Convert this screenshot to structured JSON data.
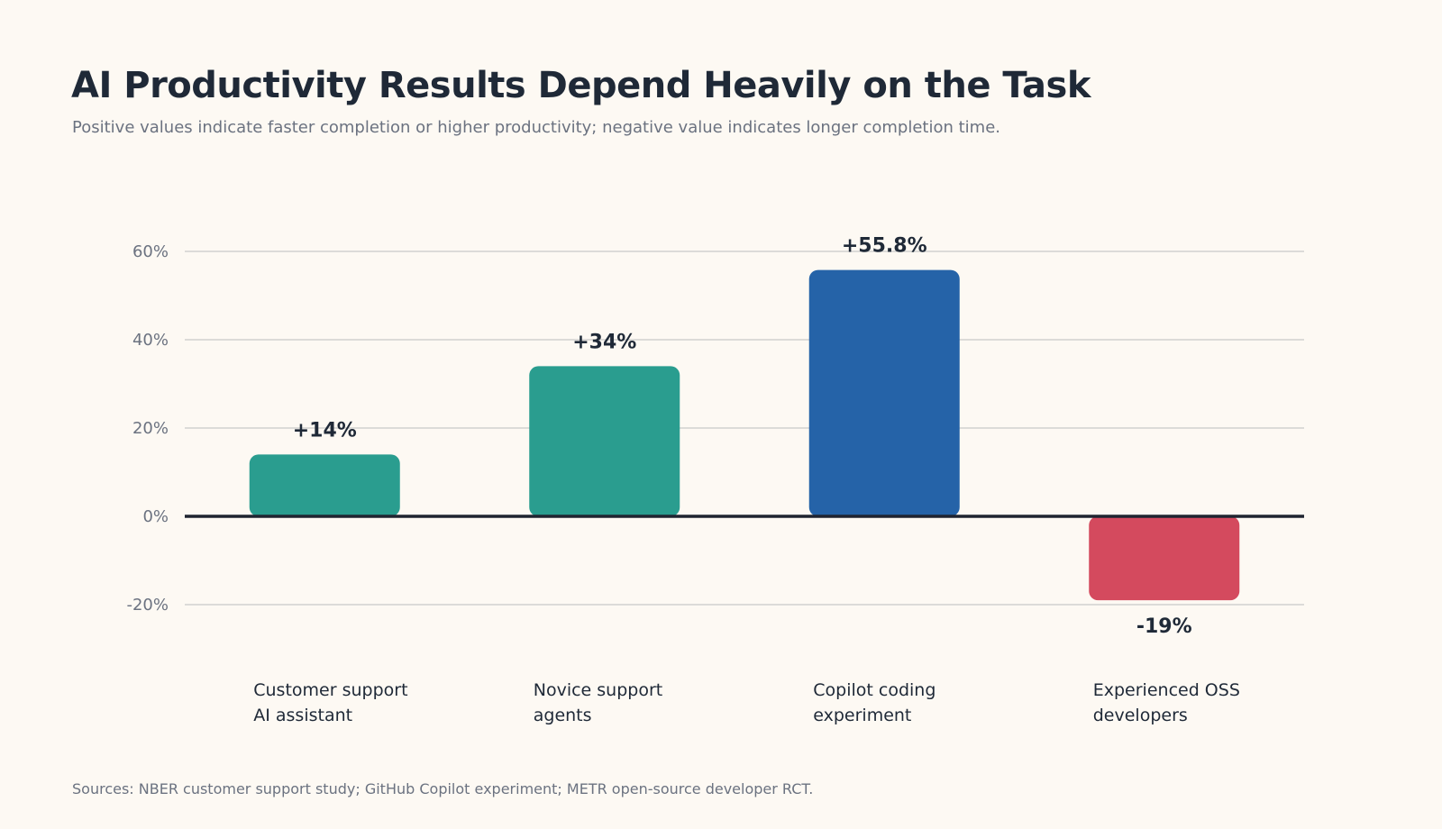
{
  "header": {
    "title": "AI Productivity Results Depend Heavily on the Task",
    "subtitle": "Positive values indicate faster completion or higher productivity; negative value indicates longer completion time."
  },
  "footer": {
    "sources": "Sources: NBER customer support study; GitHub Copilot experiment; METR open-source developer RCT."
  },
  "chart_data": {
    "type": "bar",
    "categories": [
      [
        "Customer support",
        "AI assistant"
      ],
      [
        "Novice support",
        "agents"
      ],
      [
        "Copilot coding",
        "experiment"
      ],
      [
        "Experienced OSS",
        "developers"
      ]
    ],
    "values": [
      14,
      34,
      55.8,
      -19
    ],
    "data_labels": [
      "+14%",
      "+34%",
      "+55.8%",
      "-19%"
    ],
    "bar_colors": [
      "#2a9d8f",
      "#2a9d8f",
      "#2563a8",
      "#d44a5e"
    ],
    "yticks": [
      60,
      40,
      20,
      0,
      -20
    ],
    "ytick_labels": [
      "60%",
      "40%",
      "20%",
      "0%",
      "-20%"
    ],
    "ylim": [
      -20,
      60
    ],
    "grid": true,
    "legend": "none"
  }
}
